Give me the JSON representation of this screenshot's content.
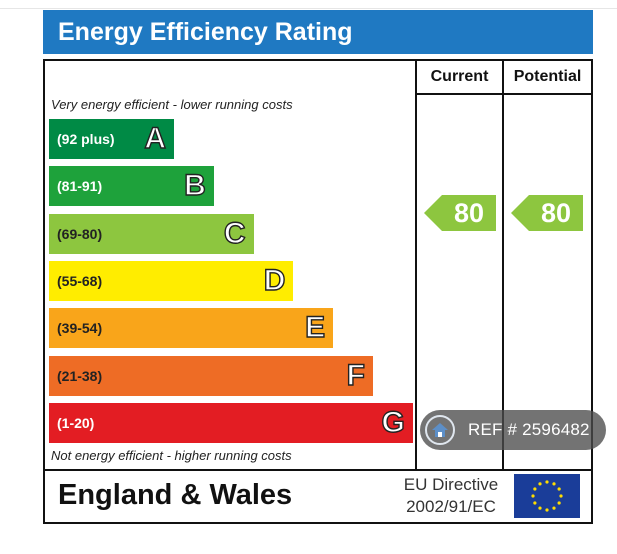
{
  "header": {
    "title": "Energy Efficiency Rating"
  },
  "columns": {
    "current": "Current",
    "potential": "Potential"
  },
  "notes": {
    "top": "Very energy efficient - lower running costs",
    "bottom": "Not energy efficient - higher running costs"
  },
  "footer": {
    "region": "England & Wales",
    "directive_line1": "EU Directive",
    "directive_line2": "2002/91/EC"
  },
  "ref_badge": {
    "text": "REF # 2596482"
  },
  "icons": {
    "home": "home-icon",
    "eu_flag": "eu-flag-icon"
  },
  "chart_data": {
    "type": "bar",
    "title": "Energy Efficiency Rating",
    "categories": [
      "A",
      "B",
      "C",
      "D",
      "E",
      "F",
      "G"
    ],
    "ranges": [
      "(92 plus)",
      "(81-91)",
      "(69-80)",
      "(55-68)",
      "(39-54)",
      "(21-38)",
      "(1-20)"
    ],
    "colors": [
      "#008a45",
      "#1ea23b",
      "#8dc63f",
      "#ffed00",
      "#f9a51a",
      "#ee6c25",
      "#e31d23"
    ],
    "range_text_colors": [
      "#ffffff",
      "#ffffff",
      "#222222",
      "#222222",
      "#222222",
      "#222222",
      "#ffffff"
    ],
    "ratings": {
      "current": 80,
      "potential": 80
    },
    "rating_color": "#8dc63f"
  }
}
